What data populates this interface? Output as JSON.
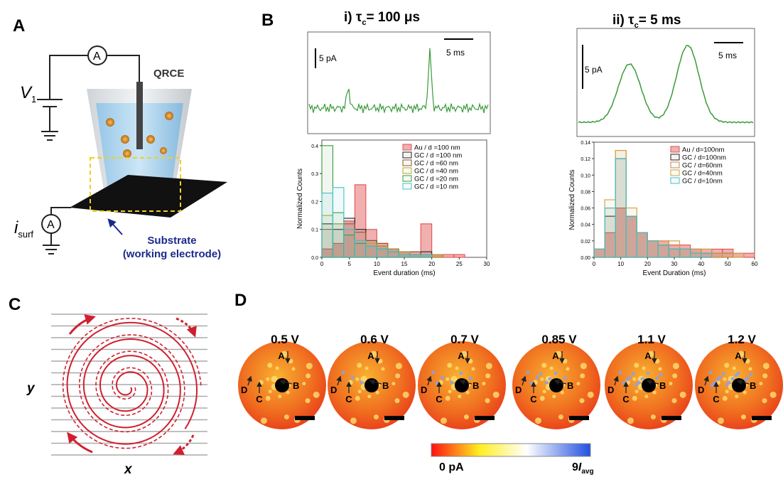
{
  "panel_labels": [
    "A",
    "B",
    "C",
    "D"
  ],
  "panel_a": {
    "ammeter_top": "A",
    "v_label": "V",
    "v_sub": "1",
    "qrce": "QRCE",
    "i_label": "i",
    "i_sub": "surf",
    "ammeter_bottom": "A",
    "substrate": "Substrate",
    "substrate_sub": "(working electrode)"
  },
  "panel_b": {
    "trace_i": {
      "title_prefix": "i)  τ",
      "title_sub": "c",
      "title_value": "= 100 μs",
      "scale_current": "5 pA",
      "scale_time": "5 ms"
    },
    "trace_ii": {
      "title_prefix": "ii)  τ",
      "title_sub": "c",
      "title_value": "= 5 ms",
      "scale_current": "5 pA",
      "scale_time": "5 ms"
    }
  },
  "chart_data": [
    {
      "type": "histogram",
      "x_label": "Event duration (ms)",
      "y_label": "Normalized Counts",
      "bins": [
        0,
        2,
        4,
        6,
        8,
        10,
        12,
        14,
        16,
        18,
        20,
        22,
        24,
        26,
        28,
        30
      ],
      "xlim": [
        0,
        30
      ],
      "xticks": [
        0,
        5,
        10,
        15,
        20,
        25,
        30
      ],
      "ylim": [
        0,
        0.42
      ],
      "yticks": [
        {
          "value": 0,
          "label": "0.0"
        },
        0.1,
        0.2,
        0.3,
        0.4
      ],
      "series": [
        {
          "name": "Au / d =100 nm",
          "color": "#e05050",
          "values": [
            0.03,
            0.05,
            0.13,
            0.26,
            0.1,
            0.05,
            0.03,
            0.02,
            0.02,
            0.12,
            0.01,
            0.01,
            0.01,
            0,
            0
          ]
        },
        {
          "name": "GC / d =100 nm",
          "color": "#222222",
          "values": [
            0.12,
            0.1,
            0.14,
            0.1,
            0.06,
            0.04,
            0.03,
            0.02,
            0.01,
            0.02,
            0.01,
            0,
            0,
            0,
            0
          ]
        },
        {
          "name": "GC / d =60 nm",
          "color": "#8b5a2b",
          "values": [
            0.1,
            0.12,
            0.12,
            0.09,
            0.06,
            0.05,
            0.03,
            0.02,
            0.02,
            0.01,
            0.01,
            0,
            0,
            0,
            0
          ]
        },
        {
          "name": "GC / d =40 nm",
          "color": "#b8a030",
          "values": [
            0.15,
            0.12,
            0.08,
            0.06,
            0.05,
            0.04,
            0.03,
            0.02,
            0.01,
            0.01,
            0.01,
            0,
            0,
            0,
            0
          ]
        },
        {
          "name": "GC / d =20 nm",
          "color": "#3a9a3a",
          "values": [
            0.4,
            0.16,
            0.08,
            0.05,
            0.04,
            0.03,
            0.02,
            0.01,
            0.01,
            0.01,
            0,
            0,
            0,
            0,
            0
          ]
        },
        {
          "name": "GC / d =10 nm",
          "color": "#40c0c8",
          "values": [
            0.23,
            0.25,
            0.1,
            0.06,
            0.04,
            0.03,
            0.02,
            0.01,
            0.01,
            0.01,
            0,
            0,
            0,
            0,
            0
          ]
        }
      ]
    },
    {
      "type": "histogram",
      "x_label": "Event Duration (ms)",
      "y_label": "Normalized Counts",
      "bins": [
        0,
        4,
        8,
        12,
        16,
        20,
        24,
        28,
        32,
        36,
        40,
        44,
        48,
        52,
        56,
        60
      ],
      "xlim": [
        0,
        60
      ],
      "xticks": [
        0,
        10,
        20,
        30,
        40,
        50,
        60
      ],
      "ylim": [
        0,
        0.14
      ],
      "yticks": [
        {
          "value": 0,
          "label": "0.00"
        },
        {
          "value": 0.02,
          "label": "0.02"
        },
        {
          "value": 0.04,
          "label": "0.04"
        },
        {
          "value": 0.06,
          "label": "0.06"
        },
        {
          "value": 0.08,
          "label": "0.08"
        },
        {
          "value": 0.1,
          "label": "0.10"
        },
        {
          "value": 0.12,
          "label": "0.12"
        },
        {
          "value": 0.14,
          "label": "0.14"
        }
      ],
      "series": [
        {
          "name": "Au / d=100nm",
          "color": "#e05050",
          "values": [
            0.01,
            0.03,
            0.06,
            0.05,
            0.03,
            0.02,
            0.02,
            0.015,
            0.015,
            0.01,
            0.01,
            0.01,
            0.01,
            0.005,
            0.005
          ]
        },
        {
          "name": "GC / d=100nm",
          "color": "#222222",
          "values": [
            0.01,
            0.05,
            0.12,
            0.05,
            0.03,
            0.02,
            0.015,
            0.01,
            0.01,
            0.01,
            0.005,
            0.005,
            0.005,
            0,
            0
          ]
        },
        {
          "name": "GC / d=60nm",
          "color": "#c08a50",
          "values": [
            0.01,
            0.06,
            0.13,
            0.05,
            0.03,
            0.02,
            0.015,
            0.01,
            0.01,
            0.005,
            0.005,
            0.005,
            0,
            0,
            0
          ]
        },
        {
          "name": "GC / d=40nm",
          "color": "#d0a040",
          "values": [
            0.01,
            0.07,
            0.13,
            0.06,
            0.03,
            0.02,
            0.02,
            0.02,
            0.01,
            0.01,
            0.01,
            0.005,
            0.005,
            0.005,
            0
          ]
        },
        {
          "name": "GC / d=10nm",
          "color": "#40c0c8",
          "values": [
            0.01,
            0.06,
            0.12,
            0.05,
            0.03,
            0.02,
            0.015,
            0.01,
            0.01,
            0.005,
            0.005,
            0,
            0,
            0,
            0
          ]
        }
      ]
    }
  ],
  "panel_c": {
    "y_label": "y",
    "x_label": "x"
  },
  "panel_d": {
    "voltages": [
      "0.5 V",
      "0.6 V",
      "0.7 V",
      "0.85 V",
      "1.1 V",
      "1.2 V"
    ],
    "markers": [
      "A",
      "B",
      "C",
      "D"
    ],
    "colorbar_min": "0 pA",
    "colorbar_max_prefix": "9",
    "colorbar_max_i": "I",
    "colorbar_max_sub": "avg"
  }
}
